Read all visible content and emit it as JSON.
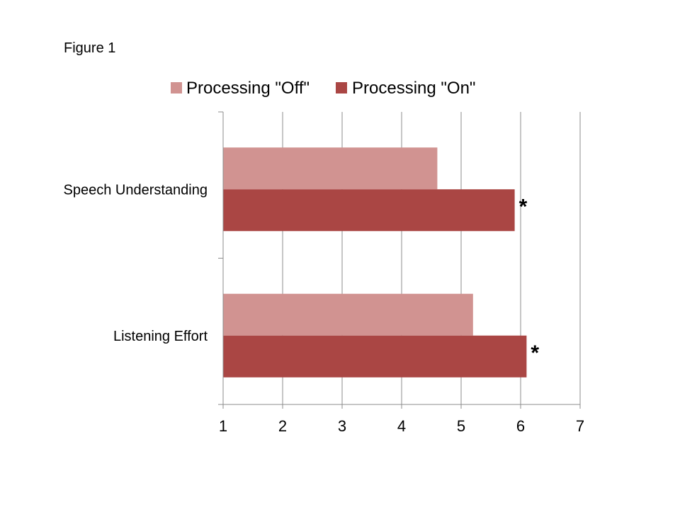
{
  "figure_label": "Figure 1",
  "chart_data": {
    "type": "bar",
    "orientation": "horizontal",
    "categories": [
      "Speech Understanding",
      "Listening Effort"
    ],
    "series": [
      {
        "name": "Processing \"Off\"",
        "values": [
          4.6,
          5.2
        ],
        "color": "#d19391"
      },
      {
        "name": "Processing \"On\"",
        "values": [
          5.9,
          6.1
        ],
        "color": "#aa4644"
      }
    ],
    "significance_markers": [
      {
        "category": "Speech Understanding",
        "series": "Processing \"On\"",
        "label": "*"
      },
      {
        "category": "Listening Effort",
        "series": "Processing \"On\"",
        "label": "*"
      }
    ],
    "xlim": [
      1,
      7
    ],
    "xticks": [
      1,
      2,
      3,
      4,
      5,
      6,
      7
    ],
    "grid": true,
    "legend": "top"
  }
}
